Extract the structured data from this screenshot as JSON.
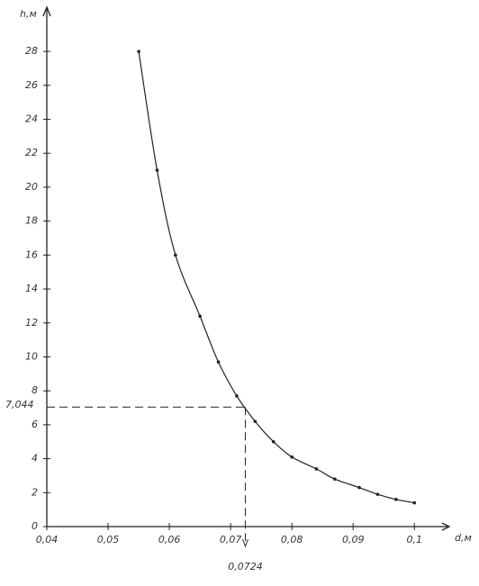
{
  "chart_data": {
    "type": "line",
    "x_label": "d,м",
    "y_label": "h,м",
    "x": [
      0.055,
      0.058,
      0.061,
      0.065,
      0.068,
      0.071,
      0.074,
      0.077,
      0.08,
      0.084,
      0.087,
      0.091,
      0.094,
      0.097,
      0.1
    ],
    "series": [
      {
        "color": "#222222",
        "values": [
          28,
          21,
          16,
          12.4,
          9.7,
          7.7,
          6.2,
          5,
          4.1,
          3.4,
          2.8,
          2.3,
          1.9,
          1.6,
          1.4
        ]
      }
    ],
    "xlim": [
      0.04,
      0.1054
    ],
    "ylim": [
      0,
      30.5
    ],
    "xticks": [
      {
        "value": 0.04,
        "label": "0,04"
      },
      {
        "value": 0.05,
        "label": "0,05"
      },
      {
        "value": 0.06,
        "label": "0,06"
      },
      {
        "value": 0.07,
        "label": "0,07"
      },
      {
        "value": 0.08,
        "label": "0,08"
      },
      {
        "value": 0.09,
        "label": "0,09"
      },
      {
        "value": 0.1,
        "label": "0,1"
      }
    ],
    "yticks": [
      0,
      2,
      4,
      6,
      8,
      10,
      12,
      14,
      16,
      18,
      20,
      22,
      24,
      26,
      28
    ],
    "annotation": {
      "x": {
        "value": 0.0724,
        "label": "0,0724"
      },
      "y": {
        "value": 7.044,
        "label": "7,044"
      }
    },
    "grid": false
  }
}
